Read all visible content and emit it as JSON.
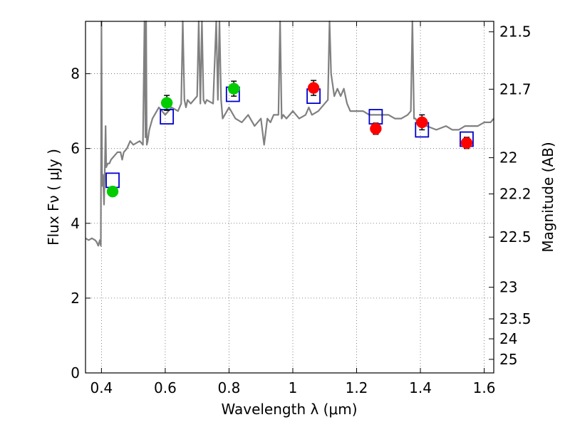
{
  "chart_data": {
    "type": "scatter",
    "xlabel": "Wavelength  λ (μm)",
    "ylabel": "Flux  Fν  ( μJy )",
    "ylabel_right": "Magnitude (AB)",
    "xlim": [
      0.35,
      1.63
    ],
    "ylim": [
      0,
      9.4
    ],
    "grid": true,
    "x_ticks": [
      0.4,
      0.6,
      0.8,
      1.0,
      1.2,
      1.4,
      1.6
    ],
    "x_tick_labels": [
      "0.4",
      "0.6",
      "0.8",
      "1",
      "1.2",
      "1.4",
      "1.6"
    ],
    "y_ticks": [
      0,
      2,
      4,
      6,
      8
    ],
    "y_tick_labels": [
      "0",
      "2",
      "4",
      "6",
      "8"
    ],
    "right_ticks": [
      {
        "label": "21.5",
        "mag": 21.5
      },
      {
        "label": "21.7",
        "mag": 21.7
      },
      {
        "label": "22",
        "mag": 22.0
      },
      {
        "label": "22.2",
        "mag": 22.2
      },
      {
        "label": "22.5",
        "mag": 22.5
      },
      {
        "label": "23",
        "mag": 23.0
      },
      {
        "label": "23.5",
        "mag": 23.5
      },
      {
        "label": "24",
        "mag": 24.0
      },
      {
        "label": "25",
        "mag": 25.0
      }
    ],
    "colors": {
      "spectrum": "#808080",
      "model": "#0000cc",
      "green": "#00cc00",
      "red": "#ff0000",
      "errorbar": "#000000",
      "grid": "#666666"
    },
    "spectrum": {
      "x": [
        0.35,
        0.36,
        0.37,
        0.38,
        0.385,
        0.39,
        0.395,
        0.398,
        0.4,
        0.402,
        0.405,
        0.408,
        0.41,
        0.413,
        0.415,
        0.42,
        0.425,
        0.43,
        0.44,
        0.45,
        0.46,
        0.465,
        0.47,
        0.48,
        0.49,
        0.5,
        0.52,
        0.53,
        0.535,
        0.538,
        0.54,
        0.542,
        0.545,
        0.55,
        0.56,
        0.58,
        0.6,
        0.62,
        0.64,
        0.65,
        0.655,
        0.66,
        0.665,
        0.67,
        0.68,
        0.7,
        0.705,
        0.71,
        0.715,
        0.72,
        0.725,
        0.73,
        0.75,
        0.76,
        0.765,
        0.77,
        0.775,
        0.78,
        0.8,
        0.82,
        0.84,
        0.86,
        0.88,
        0.9,
        0.91,
        0.92,
        0.93,
        0.94,
        0.955,
        0.96,
        0.965,
        0.97,
        0.98,
        1.0,
        1.02,
        1.04,
        1.05,
        1.06,
        1.08,
        1.1,
        1.11,
        1.115,
        1.12,
        1.13,
        1.14,
        1.15,
        1.16,
        1.17,
        1.18,
        1.2,
        1.22,
        1.24,
        1.26,
        1.28,
        1.3,
        1.32,
        1.34,
        1.36,
        1.37,
        1.375,
        1.38,
        1.385,
        1.39,
        1.42,
        1.45,
        1.48,
        1.5,
        1.52,
        1.54,
        1.56,
        1.58,
        1.6,
        1.62,
        1.63
      ],
      "y": [
        3.6,
        3.55,
        3.6,
        3.55,
        3.5,
        3.4,
        3.55,
        3.4,
        9.4,
        5.0,
        5.3,
        4.5,
        5.2,
        6.6,
        5.5,
        5.6,
        5.6,
        5.7,
        5.8,
        5.9,
        5.9,
        5.7,
        5.9,
        6.0,
        6.2,
        6.1,
        6.2,
        6.1,
        9.4,
        6.3,
        9.4,
        6.1,
        6.2,
        6.5,
        6.8,
        7.1,
        6.9,
        7.1,
        7.0,
        7.2,
        9.4,
        7.3,
        7.1,
        7.3,
        7.2,
        7.4,
        9.4,
        7.2,
        9.4,
        7.3,
        7.2,
        7.3,
        7.2,
        9.4,
        7.3,
        9.4,
        7.3,
        6.8,
        7.1,
        6.8,
        6.7,
        6.9,
        6.6,
        6.8,
        6.1,
        6.8,
        6.7,
        6.9,
        6.9,
        9.4,
        6.8,
        6.9,
        6.8,
        7.0,
        6.8,
        6.9,
        7.1,
        6.9,
        7.0,
        7.2,
        7.3,
        9.4,
        8.0,
        7.4,
        7.6,
        7.4,
        7.6,
        7.2,
        7.0,
        7.0,
        7.0,
        6.9,
        6.9,
        6.9,
        6.9,
        6.8,
        6.8,
        6.9,
        7.0,
        9.4,
        6.8,
        6.8,
        6.7,
        6.6,
        6.5,
        6.6,
        6.5,
        6.5,
        6.6,
        6.6,
        6.6,
        6.7,
        6.7,
        6.8
      ]
    },
    "model_points": {
      "x": [
        0.435,
        0.605,
        0.812,
        1.065,
        1.26,
        1.405,
        1.545
      ],
      "y": [
        5.15,
        6.85,
        7.45,
        7.4,
        6.85,
        6.5,
        6.25
      ]
    },
    "green_points": {
      "x": [
        0.435,
        0.605,
        0.815
      ],
      "y": [
        4.85,
        7.22,
        7.6
      ],
      "yerr": [
        0.1,
        0.2,
        0.2
      ]
    },
    "red_points": {
      "x": [
        1.065,
        1.26,
        1.405,
        1.545
      ],
      "y": [
        7.62,
        6.53,
        6.7,
        6.15
      ],
      "yerr": [
        0.2,
        0.15,
        0.2,
        0.15
      ]
    }
  }
}
